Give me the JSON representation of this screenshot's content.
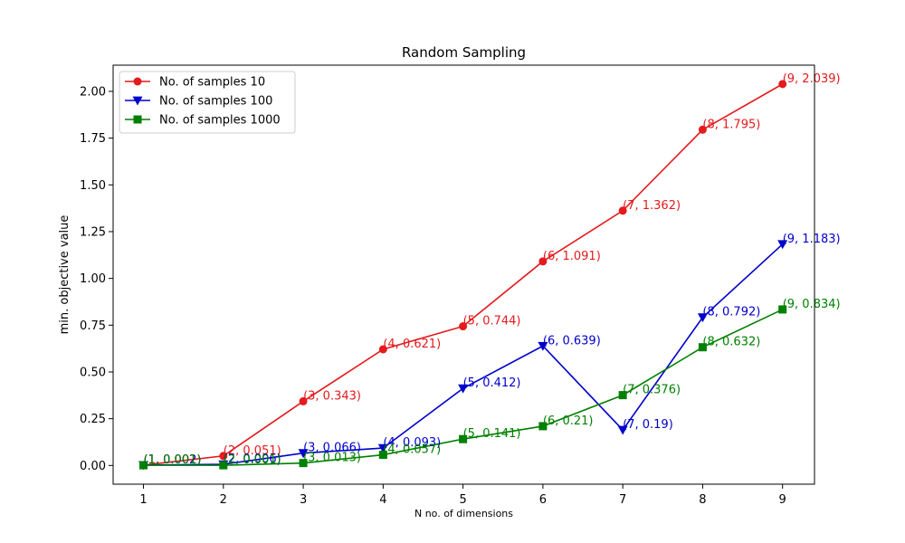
{
  "chart_data": {
    "type": "line",
    "title": "Random Sampling",
    "xlabel": "N no. of dimensions",
    "ylabel": "min. objective value",
    "xlim": [
      0.62,
      9.4
    ],
    "ylim": [
      -0.1,
      2.14
    ],
    "x_ticks": [
      1,
      2,
      3,
      4,
      5,
      6,
      7,
      8,
      9
    ],
    "y_ticks": [
      0.0,
      0.25,
      0.5,
      0.75,
      1.0,
      1.25,
      1.5,
      1.75,
      2.0
    ],
    "y_tick_labels": [
      "0.00",
      "0.25",
      "0.50",
      "0.75",
      "1.00",
      "1.25",
      "1.50",
      "1.75",
      "2.00"
    ],
    "grid": false,
    "legend_position": "top-left",
    "x": [
      1,
      2,
      3,
      4,
      5,
      6,
      7,
      8,
      9
    ],
    "series": [
      {
        "name": "No. of samples 10",
        "color": "#e41a1c",
        "marker": "circle",
        "values": [
          0.002,
          0.051,
          0.343,
          0.621,
          0.744,
          1.091,
          1.362,
          1.795,
          2.039
        ],
        "labels": [
          "(1, 0.002)",
          "(2, 0.051)",
          "(3, 0.343)",
          "(4, 0.621)",
          "(5, 0.744)",
          "(6, 1.091)",
          "(7, 1.362)",
          "(8, 1.795)",
          "(9, 2.039)"
        ]
      },
      {
        "name": "No. of samples 100",
        "color": "#0000cc",
        "marker": "triangle-down",
        "values": [
          0.002,
          0.006,
          0.066,
          0.093,
          0.412,
          0.639,
          0.19,
          0.792,
          1.183
        ],
        "labels": [
          "(1, 0.002)",
          "(2, 0.006)",
          "(3, 0.066)",
          "(4, 0.093)",
          "(5, 0.412)",
          "(6, 0.639)",
          "(7, 0.19)",
          "(8, 0.792)",
          "(9, 1.183)"
        ]
      },
      {
        "name": "No. of samples 1000",
        "color": "#008000",
        "marker": "square",
        "values": [
          0.001,
          0.001,
          0.013,
          0.057,
          0.141,
          0.21,
          0.376,
          0.632,
          0.834
        ],
        "labels": [
          "(1, 0.001)",
          "(2, 0.001)",
          "(3, 0.013)",
          "(4, 0.057)",
          "(5, 0.141)",
          "(6, 0.21)",
          "(7, 0.376)",
          "(8, 0.632)",
          "(9, 0.834)"
        ]
      }
    ]
  }
}
